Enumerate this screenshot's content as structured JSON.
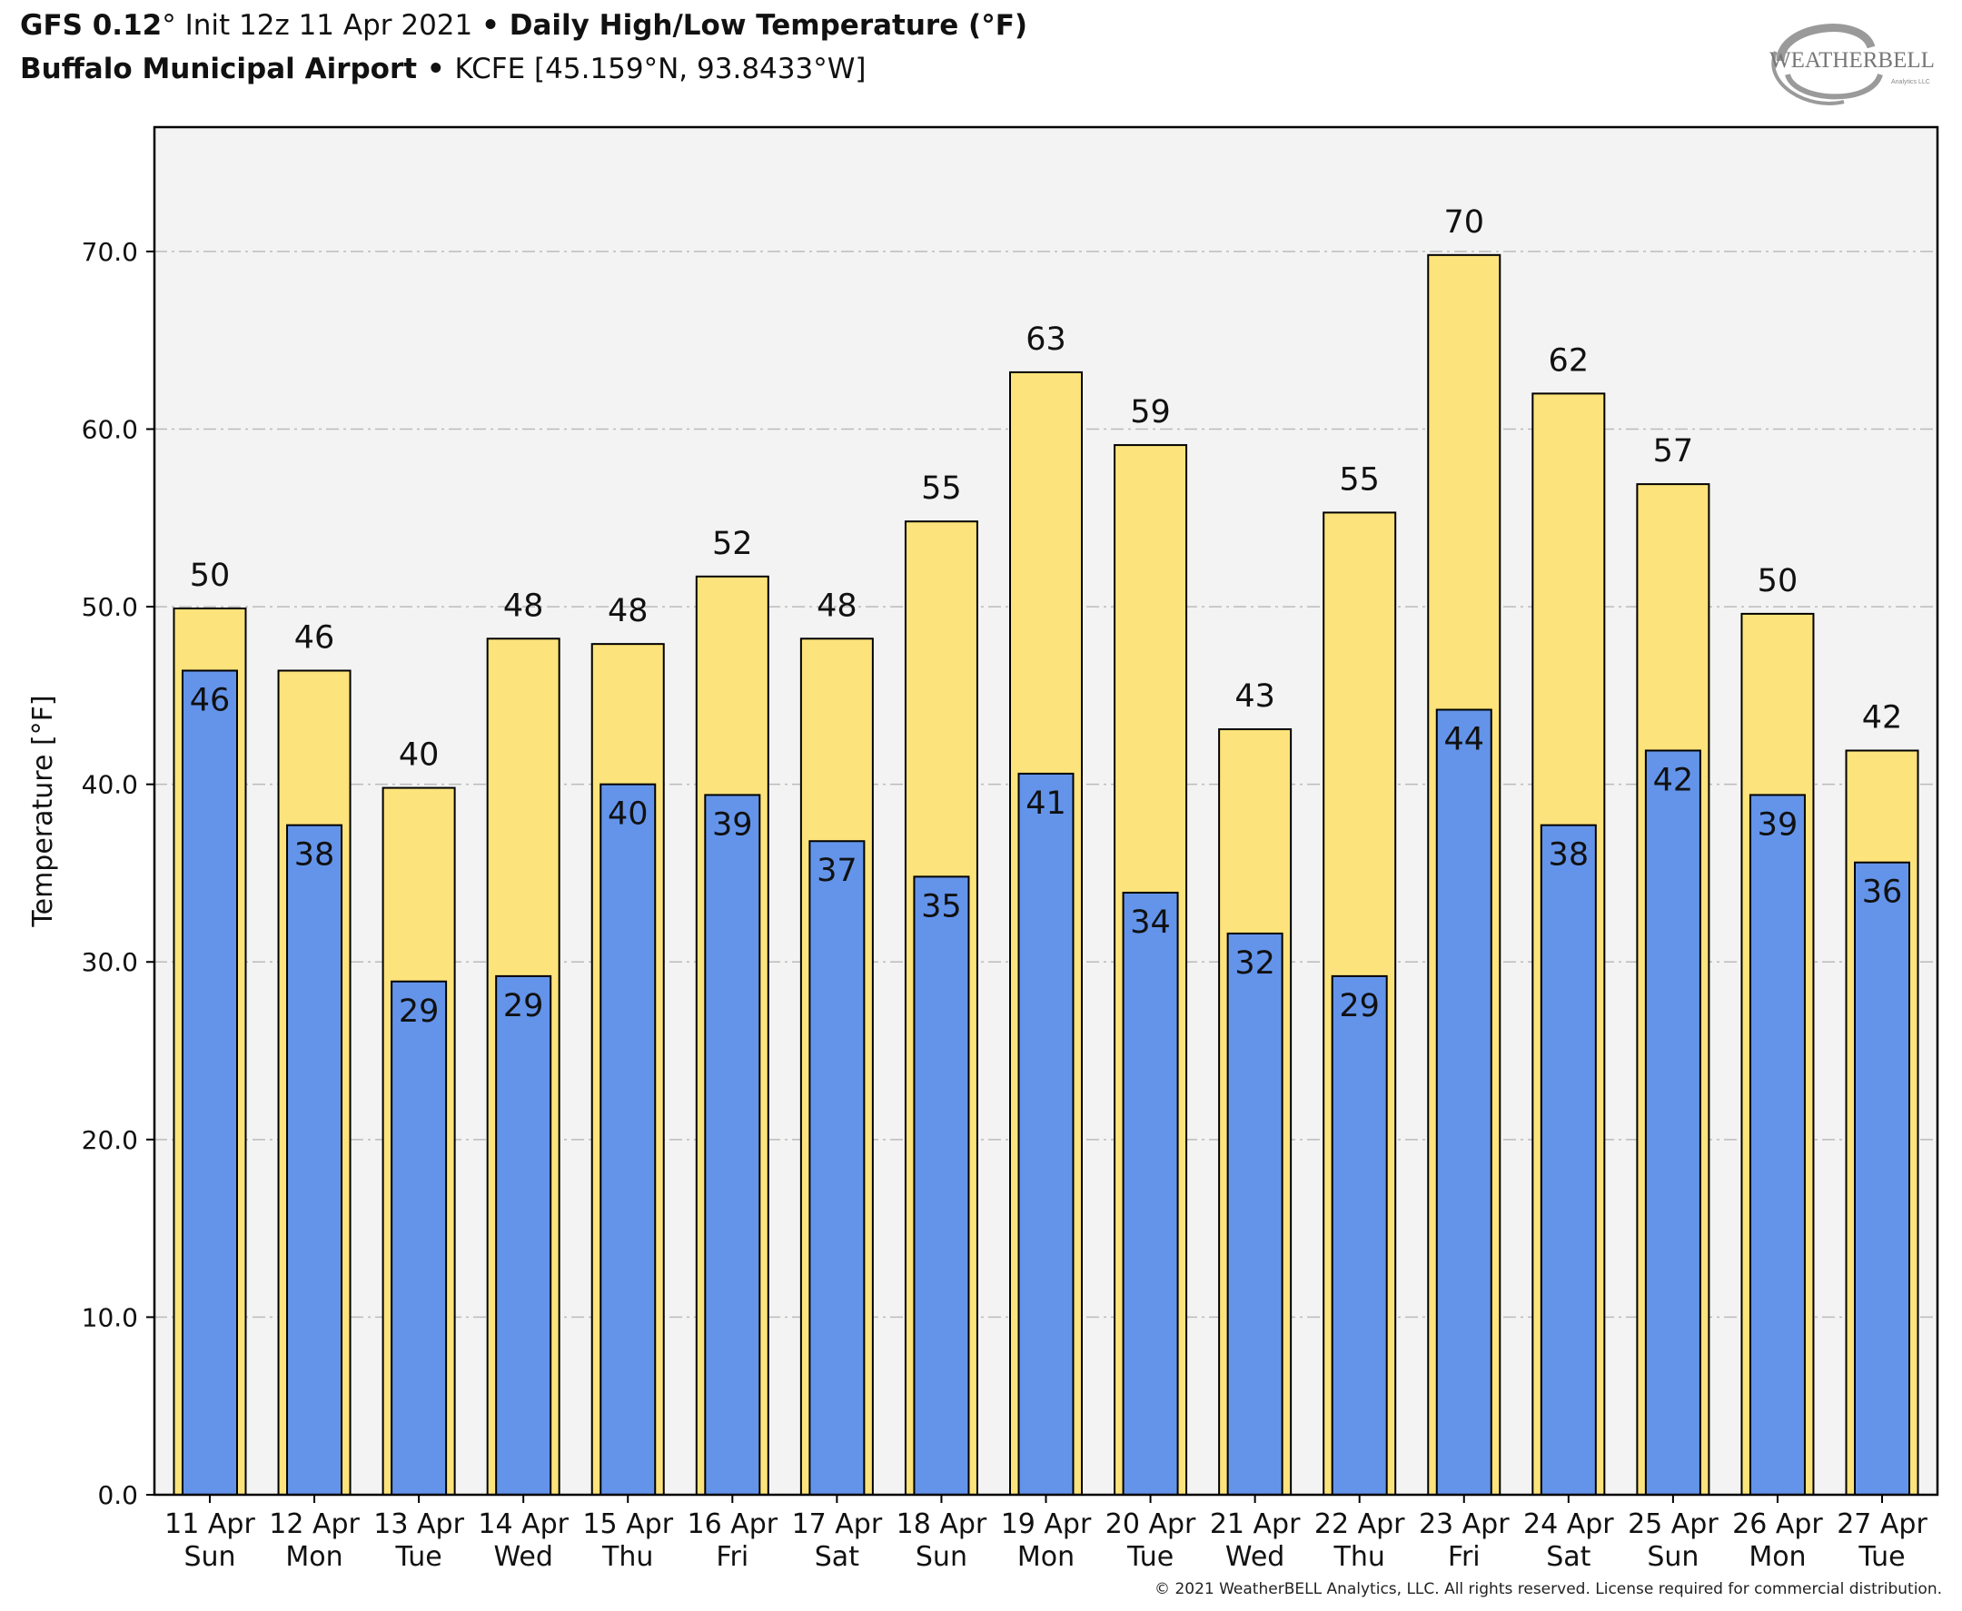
{
  "header": {
    "model": "GFS 0.12",
    "model_deg": "°",
    "init": " Init 12z 11 Apr 2021 ",
    "sep1": "• ",
    "product": "Daily High/Low Temperature (°F)",
    "station": "Buffalo Municipal Airport",
    "sep2": " • ",
    "station_info": "KCFE [45.159°N, 93.8433°W]"
  },
  "logo": {
    "text": "WEATHERBELL",
    "sub": "Analytics LLC"
  },
  "copyright": "© 2021 WeatherBELL Analytics, LLC. All rights reserved. License required for commercial distribution.",
  "colors": {
    "high": "#fce37b",
    "low": "#6394ea",
    "plot_bg": "#f3f3f3",
    "grid": "#bbbbbb"
  },
  "chart_data": {
    "type": "bar",
    "ylabel": "Temperature [°F]",
    "ylim": [
      0,
      77
    ],
    "yticks": [
      "0.0",
      "10.0",
      "20.0",
      "30.0",
      "40.0",
      "50.0",
      "60.0",
      "70.0"
    ],
    "grid": true,
    "categories": [
      [
        "11 Apr",
        "Sun"
      ],
      [
        "12 Apr",
        "Mon"
      ],
      [
        "13 Apr",
        "Tue"
      ],
      [
        "14 Apr",
        "Wed"
      ],
      [
        "15 Apr",
        "Thu"
      ],
      [
        "16 Apr",
        "Fri"
      ],
      [
        "17 Apr",
        "Sat"
      ],
      [
        "18 Apr",
        "Sun"
      ],
      [
        "19 Apr",
        "Mon"
      ],
      [
        "20 Apr",
        "Tue"
      ],
      [
        "21 Apr",
        "Wed"
      ],
      [
        "22 Apr",
        "Thu"
      ],
      [
        "23 Apr",
        "Fri"
      ],
      [
        "24 Apr",
        "Sat"
      ],
      [
        "25 Apr",
        "Sun"
      ],
      [
        "26 Apr",
        "Mon"
      ],
      [
        "27 Apr",
        "Tue"
      ]
    ],
    "series": [
      {
        "key": "high",
        "values": [
          49.9,
          46.4,
          39.8,
          48.2,
          47.9,
          51.7,
          48.2,
          54.8,
          63.2,
          59.1,
          43.1,
          55.3,
          69.8,
          62.0,
          56.9,
          49.6,
          41.9
        ],
        "labels": [
          "50",
          "46",
          "40",
          "48",
          "48",
          "52",
          "48",
          "55",
          "63",
          "59",
          "43",
          "55",
          "70",
          "62",
          "57",
          "50",
          "42"
        ]
      },
      {
        "key": "low",
        "values": [
          46.4,
          37.7,
          28.9,
          29.2,
          40.0,
          39.4,
          36.8,
          34.8,
          40.6,
          33.9,
          31.6,
          29.2,
          44.2,
          37.7,
          41.9,
          39.4,
          35.6
        ],
        "labels": [
          "46",
          "38",
          "29",
          "29",
          "40",
          "39",
          "37",
          "35",
          "41",
          "34",
          "32",
          "29",
          "44",
          "38",
          "42",
          "39",
          "36"
        ]
      }
    ]
  }
}
